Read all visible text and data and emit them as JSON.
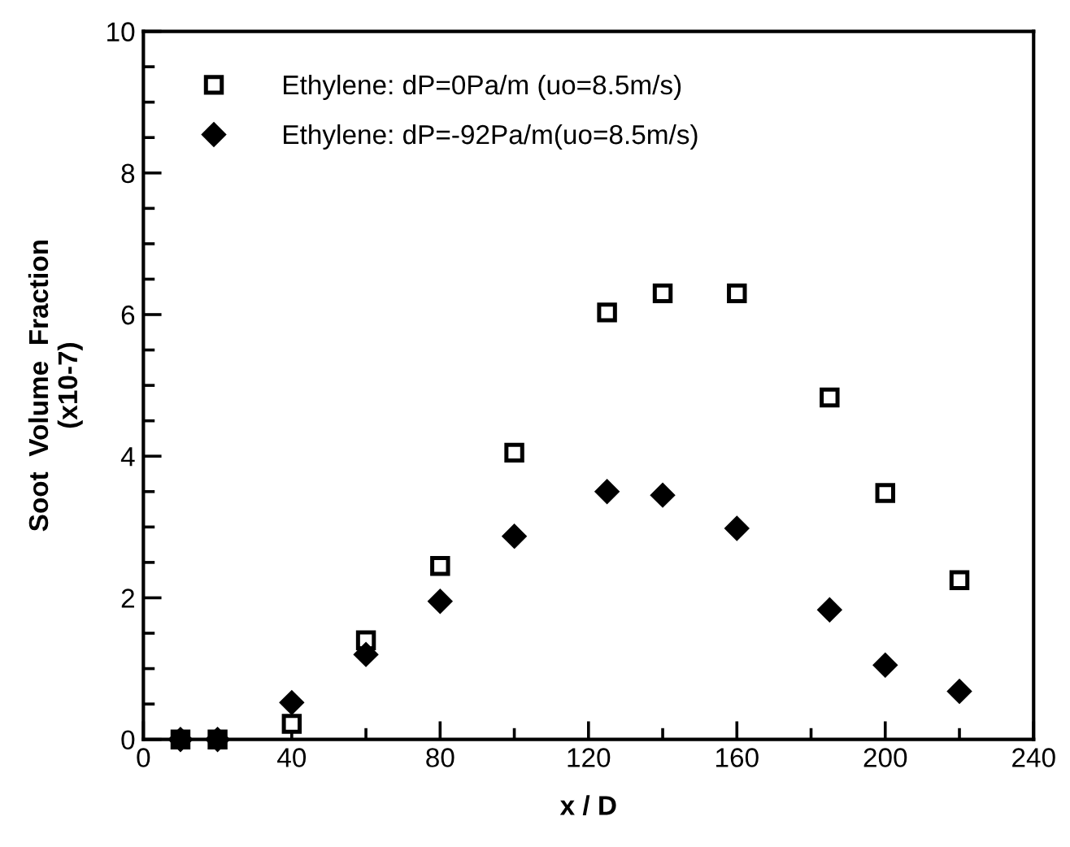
{
  "chart_data": {
    "type": "scatter",
    "xlabel": "x / D",
    "ylabel": "Soot  Volume  Fraction\n(x10-7)",
    "xlim": [
      0,
      240
    ],
    "ylim": [
      0,
      10
    ],
    "xticks": [
      0,
      40,
      80,
      120,
      160,
      200,
      240
    ],
    "yticks": [
      0,
      2,
      4,
      6,
      8,
      10
    ],
    "grid": false,
    "legend": "top left",
    "series": [
      {
        "name": "Ethylene: dP=0Pa/m (uo=8.5m/s)",
        "color": "#000000",
        "marker": "square",
        "x": [
          10,
          20,
          40,
          60,
          80,
          100,
          125,
          140,
          160,
          185,
          200,
          220
        ],
        "values": [
          0,
          0,
          0.22,
          1.4,
          2.45,
          4.05,
          6.03,
          6.3,
          6.3,
          4.83,
          3.48,
          2.25
        ]
      },
      {
        "name": "Ethylene: dP=-92Pa/m(uo=8.5m/s)",
        "color": "#000000",
        "marker": "diamond",
        "x": [
          10,
          20,
          40,
          60,
          80,
          100,
          125,
          140,
          160,
          185,
          200,
          220
        ],
        "values": [
          0,
          0,
          0.52,
          1.2,
          1.95,
          2.87,
          3.5,
          3.45,
          2.98,
          1.83,
          1.05,
          0.68
        ]
      }
    ]
  }
}
